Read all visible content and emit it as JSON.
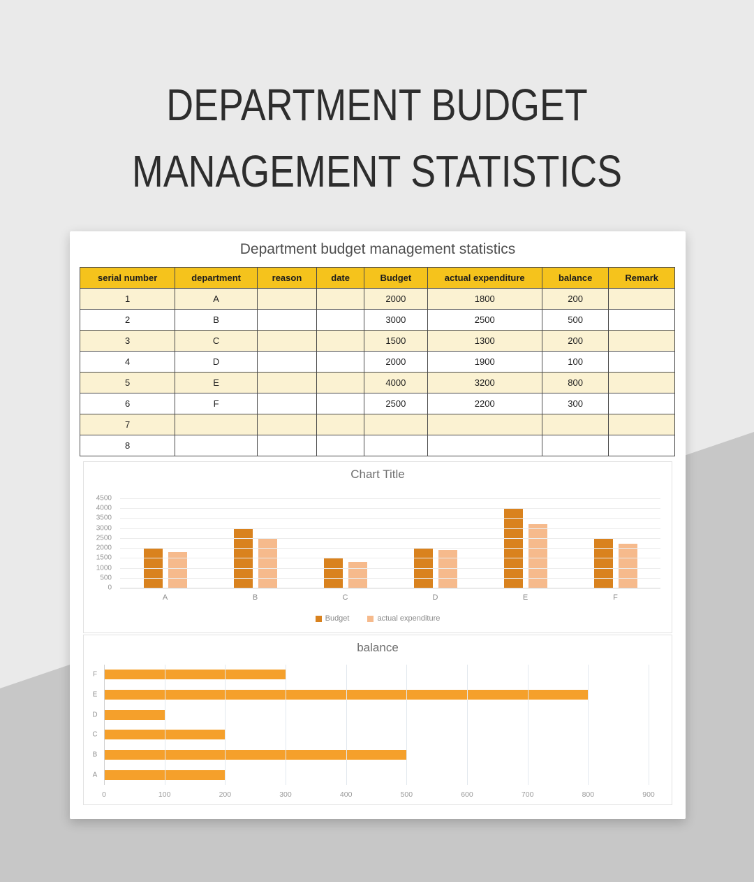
{
  "page": {
    "hero_title_line1": "DEPARTMENT BUDGET",
    "hero_title_line2": "MANAGEMENT STATISTICS"
  },
  "sheet": {
    "title": "Department budget management statistics",
    "columns": [
      "serial number",
      "department",
      "reason",
      "date",
      "Budget",
      "actual expenditure",
      "balance",
      "Remark"
    ],
    "rows": [
      [
        "1",
        "A",
        "",
        "",
        "2000",
        "1800",
        "200",
        ""
      ],
      [
        "2",
        "B",
        "",
        "",
        "3000",
        "2500",
        "500",
        ""
      ],
      [
        "3",
        "C",
        "",
        "",
        "1500",
        "1300",
        "200",
        ""
      ],
      [
        "4",
        "D",
        "",
        "",
        "2000",
        "1900",
        "100",
        ""
      ],
      [
        "5",
        "E",
        "",
        "",
        "4000",
        "3200",
        "800",
        ""
      ],
      [
        "6",
        "F",
        "",
        "",
        "2500",
        "2200",
        "300",
        ""
      ],
      [
        "7",
        "",
        "",
        "",
        "",
        "",
        "",
        ""
      ],
      [
        "8",
        "",
        "",
        "",
        "",
        "",
        "",
        ""
      ]
    ]
  },
  "chart_data": [
    {
      "type": "bar",
      "title": "Chart Title",
      "categories": [
        "A",
        "B",
        "C",
        "D",
        "E",
        "F"
      ],
      "series": [
        {
          "name": "Budget",
          "color": "#d9821e",
          "values": [
            2000,
            3000,
            1500,
            2000,
            4000,
            2500
          ]
        },
        {
          "name": "actual expenditure",
          "color": "#f6ba8c",
          "values": [
            1800,
            2500,
            1300,
            1900,
            3200,
            2200
          ]
        }
      ],
      "ylim": [
        0,
        4500
      ],
      "ytick_step": 500,
      "yticks": [
        "4500",
        "4000",
        "3500",
        "3000",
        "2500",
        "2000",
        "1500",
        "1000",
        "500",
        "0"
      ],
      "grid": "horizontal",
      "legend_position": "bottom"
    },
    {
      "type": "bar",
      "orientation": "horizontal",
      "title": "balance",
      "categories": [
        "F",
        "E",
        "D",
        "C",
        "B",
        "A"
      ],
      "values": [
        300,
        800,
        100,
        200,
        500,
        200
      ],
      "color": "#f5a02b",
      "xlim": [
        0,
        900
      ],
      "xtick_step": 100,
      "xticks": [
        "0",
        "100",
        "200",
        "300",
        "400",
        "500",
        "600",
        "700",
        "800",
        "900"
      ],
      "grid": "vertical",
      "legend_position": "none"
    }
  ],
  "colors": {
    "page_bg": "#eaeaea",
    "page_bg_dark": "#c7c7c7",
    "table_header_bg": "#f5c31c",
    "table_alt_row_bg": "#fbf2d2",
    "budget_bar": "#d9821e",
    "actual_expenditure_bar": "#f6ba8c",
    "balance_bar": "#f5a02b"
  }
}
